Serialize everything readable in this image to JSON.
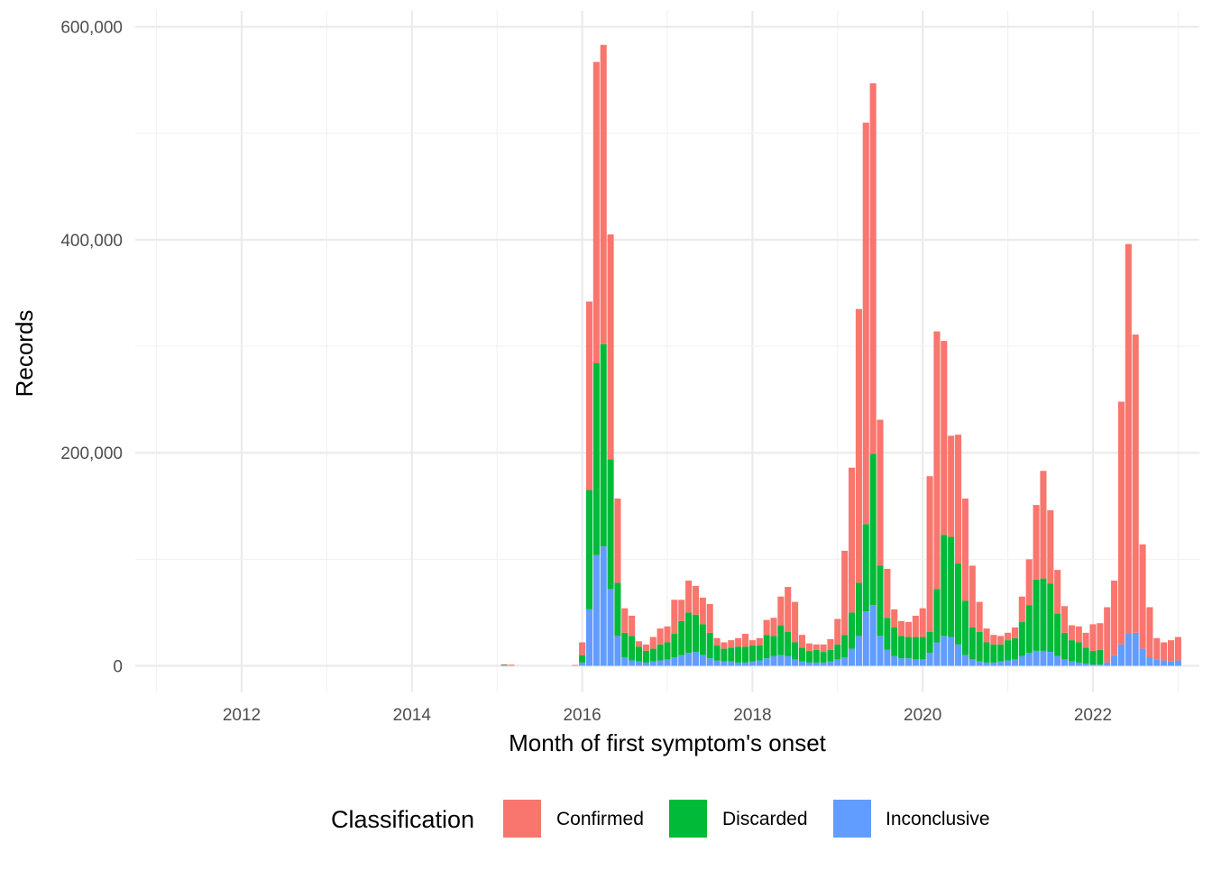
{
  "chart_data": {
    "type": "bar",
    "stacked": true,
    "xlabel": "Month of first symptom's onset",
    "ylabel": "Records",
    "xlim": [
      "2010-10",
      "2023-04"
    ],
    "ylim": [
      -25000,
      615000
    ],
    "x_ticks": [
      "2012",
      "2014",
      "2016",
      "2018",
      "2020",
      "2022"
    ],
    "y_ticks": [
      0,
      200000,
      400000,
      600000
    ],
    "y_tick_labels": [
      "0",
      "200,000",
      "400,000",
      "600,000"
    ],
    "grid": true,
    "legend": {
      "title": "Classification",
      "position": "bottom",
      "entries": [
        "Confirmed",
        "Discarded",
        "Inconclusive"
      ]
    },
    "colors": {
      "Confirmed": "#F8766D",
      "Discarded": "#00BA38",
      "Inconclusive": "#619CFF"
    },
    "x": [
      "2015-02",
      "2015-03",
      "2015-12",
      "2016-01",
      "2016-02",
      "2016-03",
      "2016-04",
      "2016-05",
      "2016-06",
      "2016-07",
      "2016-08",
      "2016-09",
      "2016-10",
      "2016-11",
      "2016-12",
      "2017-01",
      "2017-02",
      "2017-03",
      "2017-04",
      "2017-05",
      "2017-06",
      "2017-07",
      "2017-08",
      "2017-09",
      "2017-10",
      "2017-11",
      "2017-12",
      "2018-01",
      "2018-02",
      "2018-03",
      "2018-04",
      "2018-05",
      "2018-06",
      "2018-07",
      "2018-08",
      "2018-09",
      "2018-10",
      "2018-11",
      "2018-12",
      "2019-01",
      "2019-02",
      "2019-03",
      "2019-04",
      "2019-05",
      "2019-06",
      "2019-07",
      "2019-08",
      "2019-09",
      "2019-10",
      "2019-11",
      "2019-12",
      "2020-01",
      "2020-02",
      "2020-03",
      "2020-04",
      "2020-05",
      "2020-06",
      "2020-07",
      "2020-08",
      "2020-09",
      "2020-10",
      "2020-11",
      "2020-12",
      "2021-01",
      "2021-02",
      "2021-03",
      "2021-04",
      "2021-05",
      "2021-06",
      "2021-07",
      "2021-08",
      "2021-09",
      "2021-10",
      "2021-11",
      "2021-12",
      "2022-01",
      "2022-02",
      "2022-03",
      "2022-04",
      "2022-05",
      "2022-06",
      "2022-07",
      "2022-08",
      "2022-09",
      "2022-10",
      "2022-11",
      "2022-12",
      "2023-01"
    ],
    "series": [
      {
        "name": "Inconclusive",
        "values": [
          200,
          0,
          0,
          3000,
          53000,
          104000,
          112000,
          72000,
          28000,
          8000,
          5000,
          4000,
          3000,
          4000,
          5000,
          6000,
          8000,
          10000,
          12000,
          13000,
          10000,
          7000,
          5000,
          4000,
          4000,
          3000,
          3000,
          4000,
          5000,
          7000,
          9000,
          10000,
          9000,
          6000,
          4000,
          3000,
          3000,
          3000,
          4000,
          6000,
          8000,
          16000,
          28000,
          51000,
          57000,
          28000,
          15000,
          9000,
          7000,
          7000,
          6000,
          6000,
          12000,
          22000,
          28000,
          27000,
          20000,
          10000,
          6000,
          4000,
          3000,
          3000,
          4000,
          5000,
          6000,
          9000,
          12000,
          14000,
          14000,
          13000,
          9000,
          6000,
          4000,
          3000,
          2000,
          1000,
          1000,
          3000,
          10000,
          20000,
          30000,
          31000,
          16000,
          8000,
          6000,
          5000,
          4000,
          5000
        ]
      },
      {
        "name": "Discarded",
        "values": [
          500,
          0,
          0,
          7000,
          112000,
          180000,
          190000,
          122000,
          50000,
          23000,
          23000,
          14000,
          11000,
          12000,
          15000,
          16000,
          22000,
          32000,
          38000,
          35000,
          29000,
          24000,
          14000,
          12000,
          13000,
          15000,
          15000,
          15000,
          14000,
          22000,
          19000,
          28000,
          23000,
          16000,
          13000,
          11000,
          12000,
          10000,
          11000,
          14000,
          21000,
          34000,
          50000,
          82000,
          142000,
          66000,
          30000,
          27000,
          21000,
          20000,
          21000,
          21000,
          20000,
          50000,
          95000,
          94000,
          76000,
          51000,
          30000,
          28000,
          19000,
          17000,
          16000,
          19000,
          20000,
          32000,
          45000,
          67000,
          68000,
          64000,
          40000,
          25000,
          20000,
          19000,
          15000,
          13000,
          14000,
          -1000,
          0,
          0,
          0,
          0,
          0,
          0,
          0,
          0,
          0,
          0
        ]
      },
      {
        "name": "Confirmed",
        "values": [
          300,
          1000,
          500,
          12000,
          177000,
          283000,
          281000,
          211000,
          79000,
          23000,
          19000,
          5000,
          6000,
          11000,
          15000,
          15000,
          32000,
          20000,
          30000,
          27000,
          25000,
          27000,
          7000,
          6000,
          7000,
          8000,
          12000,
          5000,
          7000,
          14000,
          17000,
          27000,
          42000,
          38000,
          12000,
          7000,
          5000,
          7000,
          10000,
          24000,
          79000,
          136000,
          257000,
          377000,
          348000,
          137000,
          46000,
          17000,
          14000,
          14000,
          20000,
          27000,
          146000,
          242000,
          182000,
          95000,
          121000,
          96000,
          58000,
          28000,
          13000,
          9000,
          8000,
          7000,
          10000,
          24000,
          43000,
          70000,
          101000,
          69000,
          41000,
          25000,
          14000,
          15000,
          14000,
          25000,
          25000,
          52000,
          70000,
          228000,
          366000,
          280000,
          98000,
          47000,
          20000,
          17000,
          20000,
          22000
        ]
      }
    ]
  }
}
